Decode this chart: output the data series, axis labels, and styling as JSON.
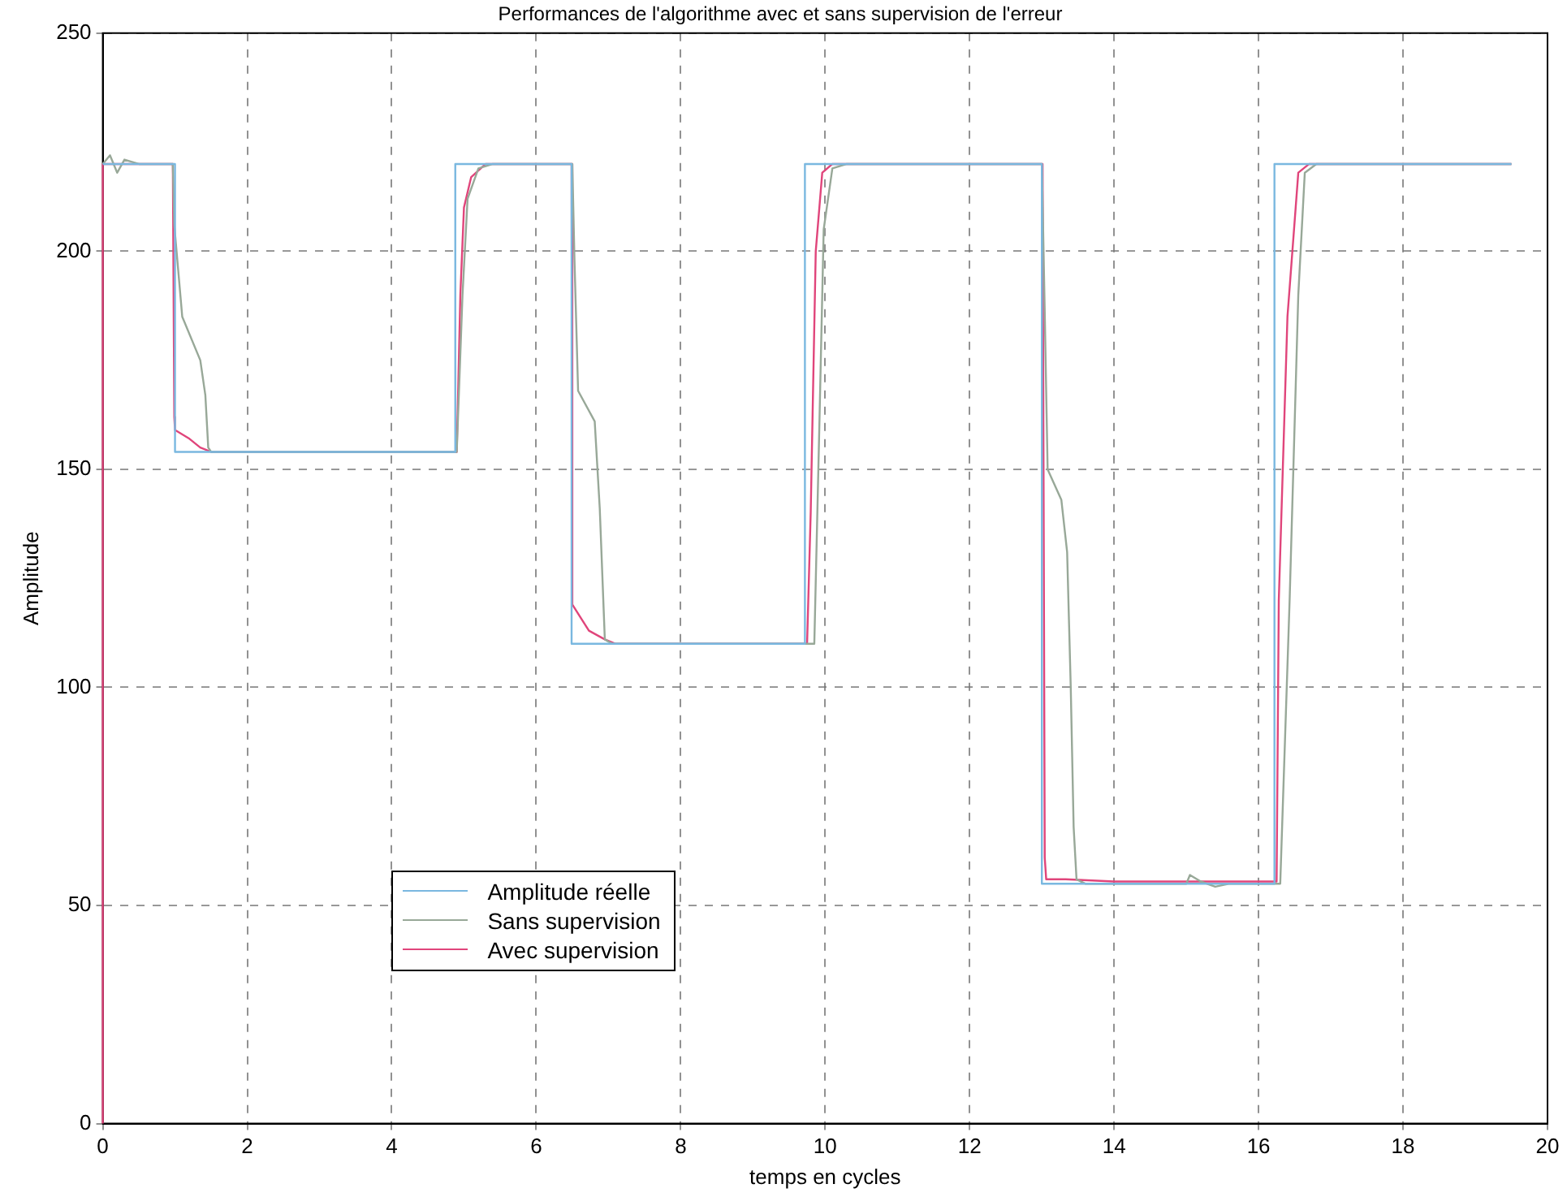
{
  "chart_data": {
    "type": "line",
    "title": "Performances de l'algorithme avec et sans supervision de l'erreur",
    "xlabel": "temps en cycles",
    "ylabel": "Amplitude",
    "xlim": [
      0,
      20
    ],
    "xticks": [
      0,
      2,
      4,
      6,
      8,
      10,
      12,
      14,
      16,
      18,
      20
    ],
    "ylim": [
      0,
      250
    ],
    "yticks": [
      0,
      50,
      100,
      150,
      200,
      250
    ],
    "grid": true,
    "legend": "bottom left",
    "marker": "none",
    "line_style": "solid",
    "series": [
      {
        "name": "Amplitude réelle",
        "color": "#7ab8e0",
        "x": [
          0,
          1.0,
          1.0,
          4.88,
          4.88,
          6.49,
          6.49,
          9.72,
          9.72,
          13.0,
          13.0,
          16.22,
          16.22,
          19.5
        ],
        "values": [
          220,
          220,
          154,
          154,
          220,
          220,
          110,
          110,
          220,
          220,
          55,
          55,
          220,
          220
        ]
      },
      {
        "name": "Sans supervision",
        "color": "#98a898",
        "x": [
          0,
          0.1,
          0.2,
          0.3,
          0.5,
          0.97,
          0.99,
          1.1,
          1.35,
          1.42,
          1.46,
          1.5,
          3,
          4.9,
          4.98,
          5.05,
          5.2,
          5.4,
          6.5,
          6.53,
          6.58,
          6.81,
          6.88,
          6.95,
          7.05,
          9.85,
          9.92,
          9.98,
          10.1,
          10.3,
          13.0,
          13.04,
          13.08,
          13.27,
          13.35,
          13.4,
          13.44,
          13.48,
          13.6,
          15.0,
          15.05,
          15.2,
          15.4,
          15.6,
          16.3,
          16.43,
          16.55,
          16.64,
          16.8,
          19.5
        ],
        "values": [
          220,
          222,
          218,
          221,
          220,
          220,
          206,
          185,
          175,
          167,
          155,
          154,
          154,
          154,
          190,
          212,
          219,
          220,
          220,
          198,
          168,
          161,
          141,
          111,
          110,
          110,
          160,
          205,
          219,
          220,
          220,
          186,
          150,
          143,
          131,
          100,
          68,
          56,
          55,
          55,
          57,
          55.5,
          54.3,
          55,
          55,
          120,
          190,
          218,
          220,
          220
        ]
      },
      {
        "name": "Avec supervision",
        "color": "#e0457b",
        "x": [
          0,
          0,
          0.97,
          0.99,
          1.0,
          1.2,
          1.35,
          1.5,
          4.9,
          4.95,
          5.0,
          5.1,
          5.3,
          6.49,
          6.5,
          6.73,
          6.95,
          7.1,
          9.75,
          9.8,
          9.87,
          9.96,
          10.1,
          13.01,
          13.04,
          13.06,
          13.33,
          14,
          16.25,
          16.28,
          16.4,
          16.55,
          16.7,
          19.5
        ],
        "values": [
          0,
          220,
          220,
          162,
          159,
          157,
          155,
          154,
          154,
          190,
          210,
          217,
          220,
          220,
          119,
          113,
          111,
          110,
          110,
          140,
          200,
          218,
          220,
          220,
          61,
          56,
          56,
          55.5,
          55.5,
          120,
          185,
          218,
          220,
          220
        ]
      }
    ]
  }
}
